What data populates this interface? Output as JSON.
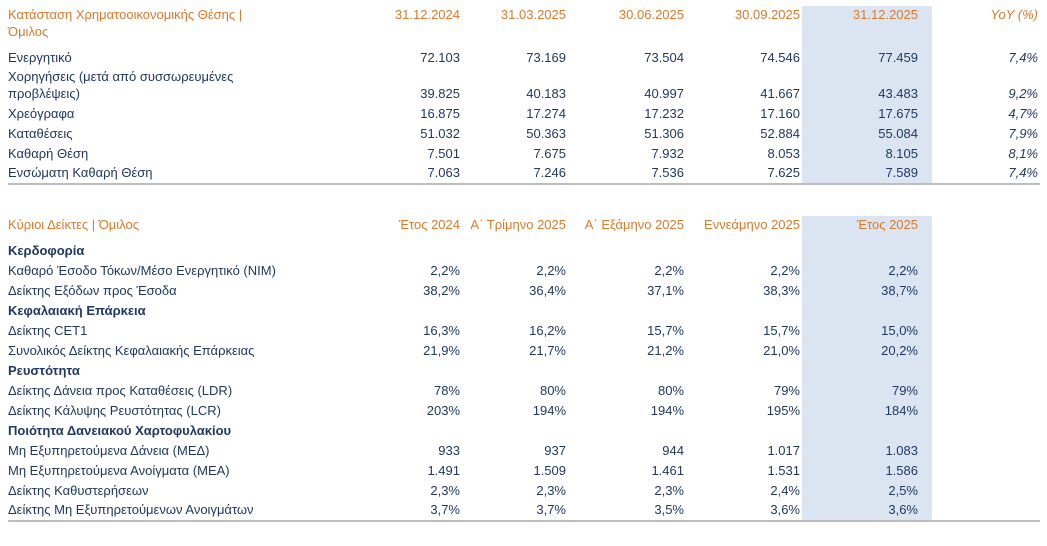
{
  "colors": {
    "header_orange": "#e0782a",
    "body_navy": "#1f3864",
    "highlight_blue": "#dbe5f1",
    "rule_gray": "#bdbdbd"
  },
  "financial_position": {
    "title": "Κατάσταση Χρηματοοικονομικής Θέσης | Όμιλος",
    "columns": [
      "31.12.2024",
      "31.03.2025",
      "30.06.2025",
      "30.09.2025",
      "31.12.2025",
      "YoY (%)"
    ],
    "rows": [
      {
        "label": "Ενεργητικό",
        "values": [
          "72.103",
          "73.169",
          "73.504",
          "74.546",
          "77.459",
          "7,4%"
        ]
      },
      {
        "label": "Χορηγήσεις (μετά από συσσωρευμένες προβλέψεις)",
        "values": [
          "39.825",
          "40.183",
          "40.997",
          "41.667",
          "43.483",
          "9,2%"
        ]
      },
      {
        "label": "Χρεόγραφα",
        "values": [
          "16.875",
          "17.274",
          "17.232",
          "17.160",
          "17.675",
          "4,7%"
        ]
      },
      {
        "label": "Καταθέσεις",
        "values": [
          "51.032",
          "50.363",
          "51.306",
          "52.884",
          "55.084",
          "7,9%"
        ]
      },
      {
        "label": "Καθαρή Θέση",
        "values": [
          "7.501",
          "7.675",
          "7.932",
          "8.053",
          "8.105",
          "8,1%"
        ]
      },
      {
        "label": "Ενσώματη Καθαρή Θέση",
        "values": [
          "7.063",
          "7.246",
          "7.536",
          "7.625",
          "7.589",
          "7,4%"
        ]
      }
    ]
  },
  "key_indicators": {
    "title": "Κύριοι Δείκτες | Όμιλος",
    "columns": [
      "Έτος 2024",
      "Α΄ Τρίμηνο 2025",
      "Α΄ Εξάμηνο 2025",
      "Εννεάμηνο 2025",
      "Έτος 2025"
    ],
    "rows": [
      {
        "section": "Κερδοφορία"
      },
      {
        "label": "Καθαρό Έσοδο Τόκων/Μέσο Ενεργητικό (NIM)",
        "values": [
          "2,2%",
          "2,2%",
          "2,2%",
          "2,2%",
          "2,2%"
        ]
      },
      {
        "label": "Δείκτης Εξόδων προς Έσοδα",
        "values": [
          "38,2%",
          "36,4%",
          "37,1%",
          "38,3%",
          "38,7%"
        ]
      },
      {
        "section": "Κεφαλαιακή Επάρκεια"
      },
      {
        "label": "Δείκτης CET1",
        "values": [
          "16,3%",
          "16,2%",
          "15,7%",
          "15,7%",
          "15,0%"
        ]
      },
      {
        "label": "Συνολικός Δείκτης Κεφαλαιακής Επάρκειας",
        "values": [
          "21,9%",
          "21,7%",
          "21,2%",
          "21,0%",
          "20,2%"
        ]
      },
      {
        "section": "Ρευστότητα"
      },
      {
        "label": "Δείκτης Δάνεια προς Καταθέσεις (LDR)",
        "values": [
          "78%",
          "80%",
          "80%",
          "79%",
          "79%"
        ]
      },
      {
        "label": "Δείκτης Κάλυψης Ρευστότητας (LCR)",
        "values": [
          "203%",
          "194%",
          "194%",
          "195%",
          "184%"
        ]
      },
      {
        "section": "Ποιότητα Δανειακού Χαρτοφυλακίου"
      },
      {
        "label": "Μη Εξυπηρετούμενα Δάνεια (ΜΕΔ)",
        "values": [
          "933",
          "937",
          "944",
          "1.017",
          "1.083"
        ]
      },
      {
        "label": "Μη Εξυπηρετούμενα Ανοίγματα (ΜΕΑ)",
        "values": [
          "1.491",
          "1.509",
          "1.461",
          "1.531",
          "1.586"
        ]
      },
      {
        "label": "Δείκτης Καθυστερήσεων",
        "values": [
          "2,3%",
          "2,3%",
          "2,3%",
          "2,4%",
          "2,5%"
        ]
      },
      {
        "label": "Δείκτης Μη Εξυπηρετούμενων Ανοιγμάτων",
        "values": [
          "3,7%",
          "3,7%",
          "3,5%",
          "3,6%",
          "3,6%"
        ]
      }
    ]
  }
}
